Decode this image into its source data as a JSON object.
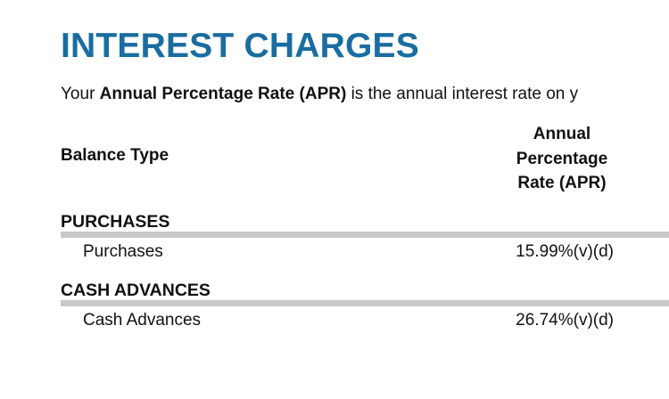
{
  "title": "INTEREST CHARGES",
  "intro": {
    "prefix": "Your ",
    "term": "Annual Percentage Rate (APR)",
    "suffix": " is the annual interest rate on y"
  },
  "table": {
    "headers": {
      "balance_type": "Balance Type",
      "apr_line1": "Annual",
      "apr_line2": "Percentage",
      "apr_line3": "Rate (APR)"
    },
    "sections": [
      {
        "heading": "PURCHASES",
        "rows": [
          {
            "label": "Purchases",
            "apr": "15.99%(v)(d)"
          }
        ]
      },
      {
        "heading": "CASH ADVANCES",
        "rows": [
          {
            "label": "Cash Advances",
            "apr": "26.74%(v)(d)"
          }
        ]
      }
    ]
  },
  "colors": {
    "title": "#1a6da0",
    "divider": "#c8c8c8",
    "text": "#111111"
  }
}
